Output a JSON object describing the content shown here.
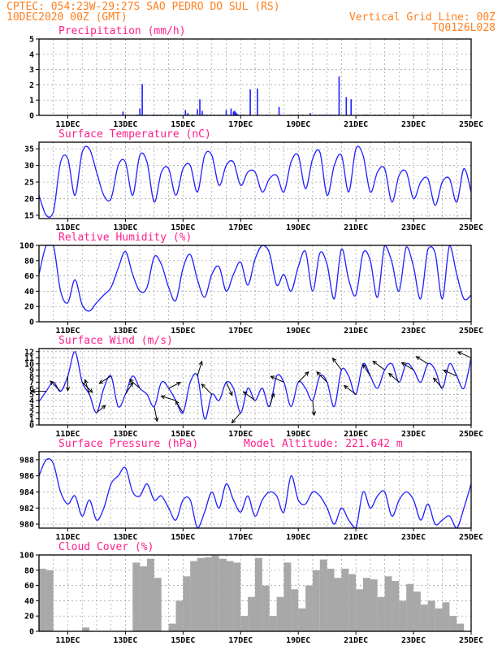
{
  "header": {
    "line1": "CPTEC:  054:23W-29:27S  SAO PEDRO DO SUL (RS)",
    "line2_left": "10DEC2020 00Z (GMT)",
    "line2_right": "Vertical Grid Line: 00Z",
    "line3_right": "TQ0126L028"
  },
  "model_altitude_label": "Model Altitude: 221.642 m",
  "colors": {
    "header": "#ff7f1e",
    "title": "#ff1e8c",
    "line": "#1e1eff",
    "bar": "#1e1eff",
    "cloud": "#a8a8a8"
  },
  "x_tick_labels": [
    "11DEC",
    "13DEC",
    "15DEC",
    "17DEC",
    "19DEC",
    "21DEC",
    "23DEC",
    "25DEC"
  ],
  "chart_data": [
    {
      "type": "bar",
      "title": "Precipitation (mm/h)",
      "x_unit": "hours since 10DEC2020 00Z",
      "ylim": [
        0,
        5
      ],
      "yticks": [
        0,
        1,
        2,
        3,
        4,
        5
      ],
      "x": [
        4,
        8,
        12,
        18,
        24,
        30,
        36,
        42,
        48,
        54,
        60,
        66,
        70,
        72,
        74,
        82,
        84,
        86,
        89,
        92,
        95,
        96,
        98,
        101,
        106,
        110,
        114,
        118,
        122,
        124,
        128,
        132,
        134,
        136,
        138,
        140,
        143,
        146,
        150,
        156,
        160,
        162,
        163,
        164,
        165,
        166,
        168,
        170,
        176,
        182,
        190,
        200,
        210,
        216,
        220,
        226,
        230,
        234,
        236,
        238,
        240,
        242,
        244,
        247,
        250,
        256,
        260,
        266,
        270,
        272,
        274,
        280,
        284,
        290,
        296,
        300,
        312,
        320,
        330
      ],
      "values": [
        0.02,
        0.02,
        0.02,
        0.03,
        0.02,
        0.02,
        0.03,
        0.05,
        0.05,
        0.03,
        0.02,
        0.03,
        0.25,
        0.05,
        0.03,
        0.05,
        0.45,
        2.05,
        0.05,
        0.03,
        0.05,
        0.05,
        0.05,
        0.05,
        0.05,
        0.05,
        0.05,
        0.05,
        0.35,
        0.15,
        0.05,
        0.4,
        1.05,
        0.3,
        0.05,
        0.05,
        0.05,
        0.05,
        0.05,
        0.35,
        0.45,
        0.25,
        0.3,
        0.2,
        0.1,
        0.05,
        0.05,
        0.05,
        1.7,
        1.75,
        0.05,
        0.55,
        0.05,
        0.05,
        0.05,
        0.15,
        0.05,
        0.05,
        0.05,
        0.05,
        0.05,
        0.05,
        0.05,
        0.05,
        2.55,
        1.2,
        1.05,
        0.05,
        0.05,
        0.05,
        0.05,
        0.05,
        0.05,
        0.05,
        0.05,
        0.05,
        0.05,
        0.05,
        0.05
      ]
    },
    {
      "type": "line",
      "title": "Surface Temperature (nC)",
      "x_unit": "hours since 10DEC2020 00Z",
      "ylim": [
        14,
        37
      ],
      "yticks": [
        15,
        20,
        25,
        30,
        35
      ],
      "x": [
        0,
        6,
        12,
        18,
        24,
        30,
        36,
        42,
        48,
        54,
        60,
        66,
        72,
        78,
        84,
        90,
        96,
        102,
        108,
        114,
        120,
        126,
        132,
        138,
        144,
        150,
        156,
        162,
        168,
        174,
        180,
        186,
        192,
        198,
        204,
        210,
        216,
        222,
        228,
        234,
        240,
        246,
        252,
        258,
        264,
        270,
        276,
        282,
        288,
        294,
        300,
        306,
        312,
        318,
        324,
        330,
        336,
        342,
        348,
        354,
        360
      ],
      "values": [
        21,
        15,
        16,
        31,
        32,
        21,
        34,
        35,
        28,
        21,
        20,
        30,
        31,
        21,
        33,
        31,
        19,
        28,
        29,
        21,
        29,
        30,
        22,
        33,
        33,
        24,
        30,
        31,
        24,
        28,
        28,
        22,
        26,
        27,
        22,
        31,
        33,
        23,
        32,
        34,
        21,
        30,
        33,
        22,
        35,
        33,
        22,
        28,
        29,
        19,
        27,
        28,
        20,
        25,
        26,
        18,
        25,
        26,
        19,
        29,
        22
      ],
      "series_name": ""
    },
    {
      "type": "line",
      "title": "Relative Humidity (%)",
      "x_unit": "hours since 10DEC2020 00Z",
      "ylim": [
        0,
        100
      ],
      "yticks": [
        0,
        20,
        40,
        60,
        80,
        100
      ],
      "x": [
        0,
        6,
        12,
        18,
        24,
        30,
        36,
        42,
        48,
        54,
        60,
        66,
        72,
        78,
        84,
        90,
        96,
        102,
        108,
        114,
        120,
        126,
        132,
        138,
        144,
        150,
        156,
        162,
        168,
        174,
        180,
        186,
        192,
        198,
        204,
        210,
        216,
        222,
        228,
        234,
        240,
        246,
        252,
        258,
        264,
        270,
        276,
        282,
        288,
        294,
        300,
        306,
        312,
        318,
        324,
        330,
        336,
        342,
        348,
        354,
        360
      ],
      "values": [
        62,
        100,
        100,
        40,
        25,
        55,
        22,
        14,
        25,
        35,
        45,
        70,
        92,
        62,
        40,
        45,
        85,
        75,
        45,
        28,
        70,
        88,
        55,
        32,
        62,
        72,
        40,
        62,
        78,
        48,
        82,
        100,
        90,
        48,
        62,
        40,
        72,
        92,
        40,
        90,
        75,
        30,
        95,
        55,
        35,
        90,
        80,
        32,
        100,
        78,
        40,
        98,
        72,
        30,
        95,
        90,
        30,
        100,
        62,
        30,
        35
      ],
      "series_name": ""
    },
    {
      "type": "line",
      "title": "Surface Wind (m/s)",
      "x_unit": "hours since 10DEC2020 00Z",
      "ylim": [
        0,
        12.5
      ],
      "yticks": [
        0,
        1,
        2,
        3,
        4,
        5,
        6,
        7,
        8,
        9,
        10,
        11,
        12
      ],
      "x": [
        0,
        6,
        12,
        18,
        24,
        30,
        36,
        42,
        48,
        54,
        60,
        66,
        72,
        78,
        84,
        90,
        96,
        102,
        108,
        114,
        120,
        126,
        132,
        138,
        144,
        150,
        156,
        162,
        168,
        174,
        180,
        186,
        192,
        198,
        204,
        210,
        216,
        222,
        228,
        234,
        240,
        246,
        252,
        258,
        264,
        270,
        276,
        282,
        288,
        294,
        300,
        306,
        312,
        318,
        324,
        330,
        336,
        342,
        348,
        354,
        360
      ],
      "values": [
        3.8,
        5.5,
        7,
        5.5,
        8,
        12,
        7,
        5,
        2,
        6,
        8,
        3,
        5,
        8,
        6,
        5,
        3,
        7,
        6,
        4,
        2,
        7,
        8,
        1,
        5,
        4,
        7,
        6,
        2,
        6,
        4,
        6,
        3,
        8,
        7,
        3,
        7,
        6,
        4,
        8,
        7,
        3,
        9,
        8,
        5,
        10,
        8,
        6,
        9,
        10,
        7,
        10,
        9,
        7,
        10,
        9,
        6,
        10,
        8,
        6,
        11
      ],
      "arrows": [
        [
          6,
          -1,
          0
        ],
        [
          18,
          -0.7,
          0.7
        ],
        [
          24,
          0,
          -1
        ],
        [
          36,
          0.7,
          -0.7
        ],
        [
          42,
          -0.3,
          1
        ],
        [
          48,
          0.6,
          0.5
        ],
        [
          60,
          -0.8,
          -0.5
        ],
        [
          72,
          0.5,
          0.8
        ],
        [
          84,
          -0.7,
          0.6
        ],
        [
          96,
          0.2,
          -1
        ],
        [
          108,
          0.8,
          0.4
        ],
        [
          114,
          -1,
          0.3
        ],
        [
          120,
          -0.5,
          0.8
        ],
        [
          132,
          0.3,
          1
        ],
        [
          144,
          -0.7,
          0.7
        ],
        [
          156,
          0.4,
          -0.9
        ],
        [
          168,
          -0.6,
          -0.7
        ],
        [
          180,
          -0.8,
          0.6
        ],
        [
          192,
          0.3,
          0.9
        ],
        [
          204,
          -0.9,
          0.4
        ],
        [
          216,
          0.7,
          0.7
        ],
        [
          228,
          0.1,
          -1
        ],
        [
          240,
          -0.7,
          0.7
        ],
        [
          252,
          -0.6,
          0.8
        ],
        [
          264,
          -0.8,
          0.6
        ],
        [
          276,
          -0.5,
          0.8
        ],
        [
          288,
          -0.8,
          0.6
        ],
        [
          300,
          -0.7,
          0.6
        ],
        [
          312,
          -0.8,
          0.5
        ],
        [
          324,
          -0.8,
          0.5
        ],
        [
          336,
          -0.6,
          0.7
        ],
        [
          348,
          -0.9,
          0.4
        ],
        [
          360,
          -0.9,
          0.4
        ]
      ]
    },
    {
      "type": "line",
      "title": "Surface Pressure (hPa)",
      "x_unit": "hours since 10DEC2020 00Z",
      "ylim": [
        979.5,
        989
      ],
      "yticks": [
        980,
        982,
        984,
        986,
        988
      ],
      "x": [
        0,
        6,
        12,
        18,
        24,
        30,
        36,
        42,
        48,
        54,
        60,
        66,
        72,
        78,
        84,
        90,
        96,
        102,
        108,
        114,
        120,
        126,
        132,
        138,
        144,
        150,
        156,
        162,
        168,
        174,
        180,
        186,
        192,
        198,
        204,
        210,
        216,
        222,
        228,
        234,
        240,
        246,
        252,
        258,
        264,
        270,
        276,
        282,
        288,
        294,
        300,
        306,
        312,
        318,
        324,
        330,
        336,
        342,
        348,
        354,
        360
      ],
      "values": [
        986,
        988,
        987.5,
        984,
        982.5,
        983.5,
        981,
        983,
        980.5,
        982,
        985,
        986,
        987,
        984,
        983.5,
        985,
        983,
        983.5,
        982,
        980.5,
        983,
        983,
        979.5,
        981.5,
        984,
        982,
        985,
        983,
        981.5,
        983.5,
        981,
        983,
        984,
        983.5,
        981.5,
        986,
        983,
        982.5,
        984,
        983.5,
        982,
        980,
        982,
        980.5,
        979.5,
        984,
        982,
        983.5,
        984,
        981,
        983,
        984,
        983,
        980.5,
        982.5,
        980,
        980.5,
        981,
        979.5,
        982,
        985
      ],
      "series_name": ""
    },
    {
      "type": "bar",
      "title": "Cloud Cover (%)",
      "x_unit": "hours since 10DEC2020 00Z",
      "ylim": [
        0,
        100
      ],
      "yticks": [
        0,
        20,
        40,
        60,
        80,
        100
      ],
      "x": [
        0,
        6,
        12,
        18,
        24,
        30,
        36,
        42,
        48,
        54,
        60,
        66,
        72,
        78,
        84,
        90,
        96,
        102,
        108,
        114,
        120,
        126,
        132,
        138,
        144,
        150,
        156,
        162,
        168,
        174,
        180,
        186,
        192,
        198,
        204,
        210,
        216,
        222,
        228,
        234,
        240,
        246,
        252,
        258,
        264,
        270,
        276,
        282,
        288,
        294,
        300,
        306,
        312,
        318,
        324,
        330,
        336,
        342,
        348,
        354,
        360
      ],
      "values": [
        82,
        80,
        0,
        0,
        0,
        0,
        5,
        0,
        0,
        0,
        0,
        0,
        0,
        90,
        85,
        95,
        70,
        0,
        10,
        40,
        72,
        92,
        96,
        97,
        99,
        95,
        92,
        90,
        20,
        45,
        96,
        60,
        20,
        45,
        90,
        55,
        30,
        60,
        80,
        94,
        82,
        70,
        82,
        75,
        55,
        70,
        68,
        45,
        72,
        66,
        40,
        62,
        52,
        35,
        40,
        30,
        38,
        20,
        10,
        0,
        0
      ]
    }
  ],
  "panel_titles": {
    "precip": "Precipitation (mm/h)",
    "temp": "Surface Temperature (nC)",
    "rh": "Relative Humidity (%)",
    "wind": "Surface Wind (m/s)",
    "pres": "Surface Pressure (hPa)",
    "cloud": "Cloud Cover (%)"
  }
}
